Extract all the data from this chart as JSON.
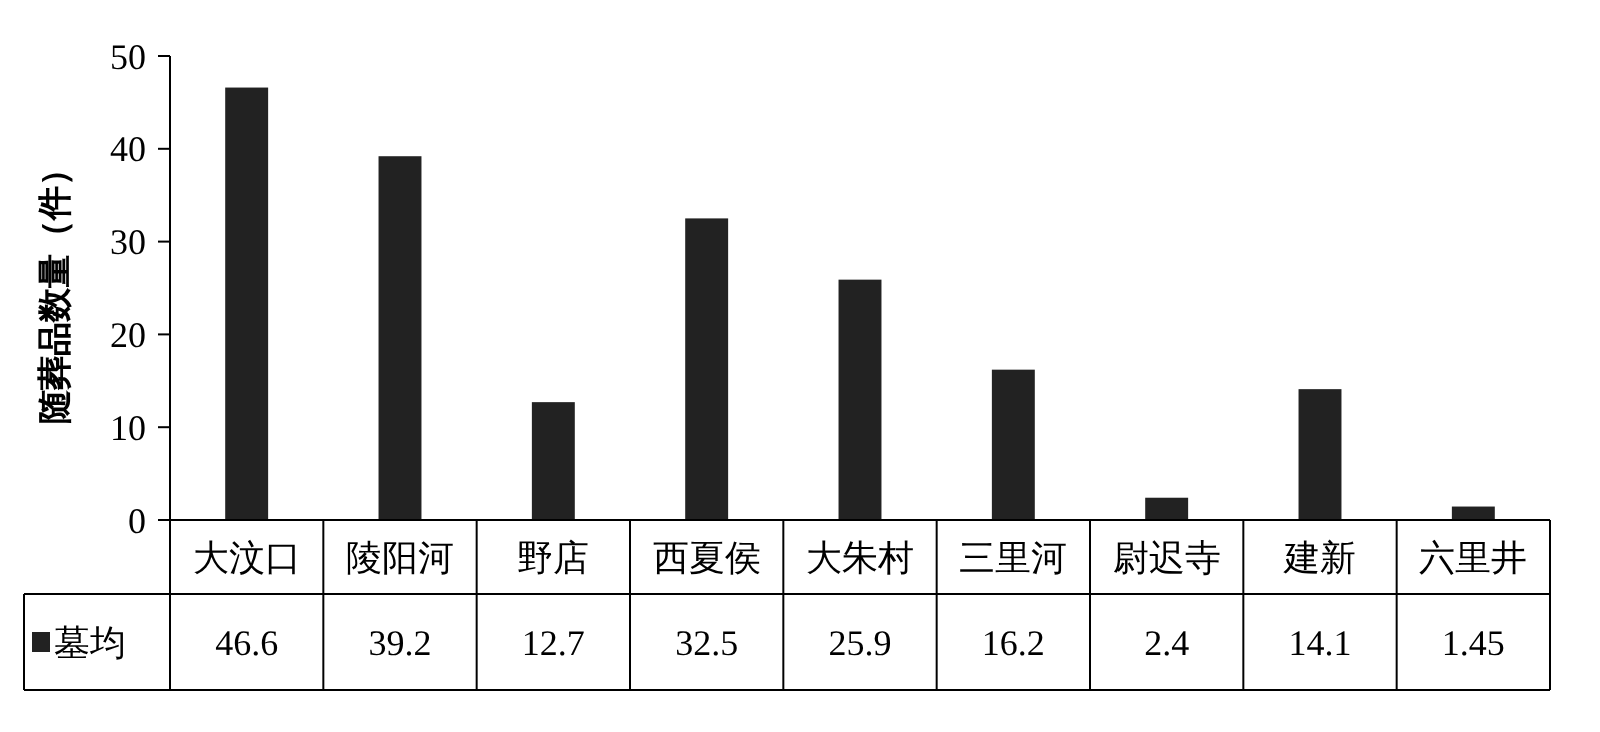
{
  "chart_data": {
    "type": "bar",
    "ylabel": "随葬品数量（件）",
    "categories": [
      "大汶口",
      "陵阳河",
      "野店",
      "西夏侯",
      "大朱村",
      "三里河",
      "尉迟寺",
      "建新",
      "六里井"
    ],
    "series": [
      {
        "name": "墓均",
        "color": "#222222",
        "values": [
          46.6,
          39.2,
          12.7,
          32.5,
          25.9,
          16.2,
          2.4,
          14.1,
          1.45
        ]
      }
    ],
    "ylim": [
      0,
      50
    ],
    "yticks": [
      0,
      10,
      20,
      30,
      40,
      50
    ],
    "data_labels": true,
    "legend": "bottom left"
  }
}
